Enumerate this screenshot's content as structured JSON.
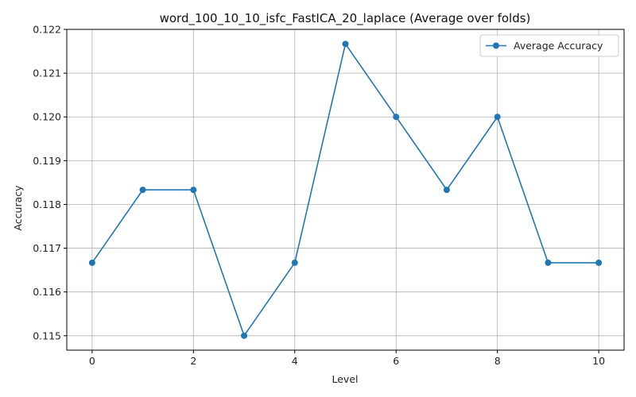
{
  "chart_data": {
    "type": "line",
    "title": "word_100_10_10_isfc_FastICA_20_laplace (Average over folds)",
    "xlabel": "Level",
    "ylabel": "Accuracy",
    "x": [
      0,
      1,
      2,
      3,
      4,
      5,
      6,
      7,
      8,
      9,
      10
    ],
    "series": [
      {
        "name": "Average Accuracy",
        "values": [
          0.116667,
          0.118333,
          0.118333,
          0.115,
          0.116667,
          0.121667,
          0.12,
          0.118333,
          0.12,
          0.116667,
          0.116667
        ],
        "color": "#1f77b4",
        "marker": "circle"
      }
    ],
    "xlim": [
      -0.5,
      10.5
    ],
    "ylim": [
      0.11467,
      0.122
    ],
    "xticks": [
      0,
      2,
      4,
      6,
      8,
      10
    ],
    "xtick_labels": [
      "0",
      "2",
      "4",
      "6",
      "8",
      "10"
    ],
    "yticks": [
      0.115,
      0.116,
      0.117,
      0.118,
      0.119,
      0.12,
      0.121,
      0.122
    ],
    "ytick_labels": [
      "0.115",
      "0.116",
      "0.117",
      "0.118",
      "0.119",
      "0.120",
      "0.121",
      "0.122"
    ],
    "grid": true,
    "legend_position": "top-right"
  }
}
